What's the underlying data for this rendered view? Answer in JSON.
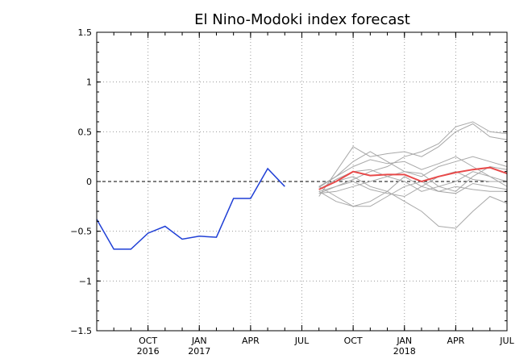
{
  "chart_data": {
    "type": "line",
    "title": "El Nino-Modoki index forecast",
    "xlabel": "",
    "ylabel": "",
    "ylim": [
      -1.5,
      1.5
    ],
    "yticks": [
      1.5,
      1,
      0.5,
      0,
      -0.5,
      -1,
      -1.5
    ],
    "ytick_labels": [
      "1.5",
      "1",
      "0.5",
      "0",
      "−0.5",
      "−1",
      "−1.5"
    ],
    "xlim": [
      "2016-07",
      "2018-07"
    ],
    "xticks": [
      {
        "x": "2016-10",
        "label": "OCT",
        "sublabel": "2016"
      },
      {
        "x": "2017-01",
        "label": "JAN",
        "sublabel": "2017"
      },
      {
        "x": "2017-04",
        "label": "APR",
        "sublabel": ""
      },
      {
        "x": "2017-07",
        "label": "JUL",
        "sublabel": ""
      },
      {
        "x": "2017-10",
        "label": "OCT",
        "sublabel": ""
      },
      {
        "x": "2018-01",
        "label": "JAN",
        "sublabel": "2018"
      },
      {
        "x": "2018-04",
        "label": "APR",
        "sublabel": ""
      },
      {
        "x": "2018-07",
        "label": "JUL",
        "sublabel": ""
      }
    ],
    "grid": true,
    "zero_line": true,
    "colors": {
      "observed": "#1f3fd6",
      "members": "#a8a8a8",
      "ensemble_mean": "#e84a4a",
      "frame": "#000000",
      "grid": "#9a9a9a"
    },
    "observed": {
      "x": [
        "2016-07",
        "2016-08",
        "2016-09",
        "2016-10",
        "2016-11",
        "2016-12",
        "2017-01",
        "2017-02",
        "2017-03",
        "2017-04",
        "2017-05",
        "2017-06",
        "2017-07"
      ],
      "values": [
        -0.38,
        -0.68,
        -0.68,
        -0.52,
        -0.45,
        -0.58,
        -0.55,
        -0.56,
        -0.17,
        -0.17,
        0.13,
        -0.05,
        null
      ]
    },
    "forecast_x": [
      "2017-08",
      "2017-09",
      "2017-10",
      "2017-11",
      "2017-12",
      "2018-01",
      "2018-02",
      "2018-03",
      "2018-04",
      "2018-05",
      "2018-06",
      "2018-07"
    ],
    "ensemble_mean": [
      -0.08,
      0.0,
      0.1,
      0.06,
      0.07,
      0.07,
      0.0,
      0.05,
      0.09,
      0.12,
      0.14,
      0.08
    ],
    "members": [
      [
        -0.1,
        -0.05,
        0.02,
        0.1,
        0.15,
        0.25,
        0.3,
        0.38,
        0.55,
        0.6,
        0.5,
        0.48
      ],
      [
        -0.15,
        0.1,
        0.35,
        0.25,
        0.28,
        0.3,
        0.25,
        0.35,
        0.5,
        0.58,
        0.45,
        0.42
      ],
      [
        -0.05,
        0.05,
        0.15,
        0.22,
        0.18,
        0.2,
        0.12,
        0.18,
        0.25,
        0.15,
        0.05,
        -0.05
      ],
      [
        -0.12,
        -0.1,
        -0.05,
        0.0,
        0.05,
        0.1,
        0.08,
        -0.05,
        -0.1,
        0.05,
        0.15,
        0.12
      ],
      [
        -0.08,
        0.0,
        0.05,
        -0.05,
        -0.1,
        0.05,
        -0.05,
        -0.1,
        -0.05,
        -0.08,
        -0.1,
        -0.1
      ],
      [
        -0.05,
        -0.15,
        -0.25,
        -0.2,
        -0.1,
        -0.2,
        -0.3,
        -0.45,
        -0.47,
        -0.3,
        -0.15,
        -0.22
      ],
      [
        -0.1,
        -0.2,
        -0.25,
        -0.25,
        -0.15,
        -0.05,
        0.0,
        -0.1,
        -0.12,
        -0.02,
        -0.05,
        -0.08
      ],
      [
        -0.08,
        0.02,
        0.1,
        0.12,
        0.05,
        0.0,
        -0.1,
        -0.05,
        0.0,
        0.1,
        0.05,
        0.0
      ],
      [
        -0.12,
        -0.05,
        0.0,
        -0.08,
        -0.12,
        -0.15,
        -0.05,
        0.05,
        0.1,
        0.02,
        0.0,
        0.0
      ],
      [
        -0.06,
        0.05,
        0.2,
        0.3,
        0.2,
        0.1,
        0.05,
        0.15,
        0.2,
        0.25,
        0.2,
        0.15
      ]
    ]
  }
}
